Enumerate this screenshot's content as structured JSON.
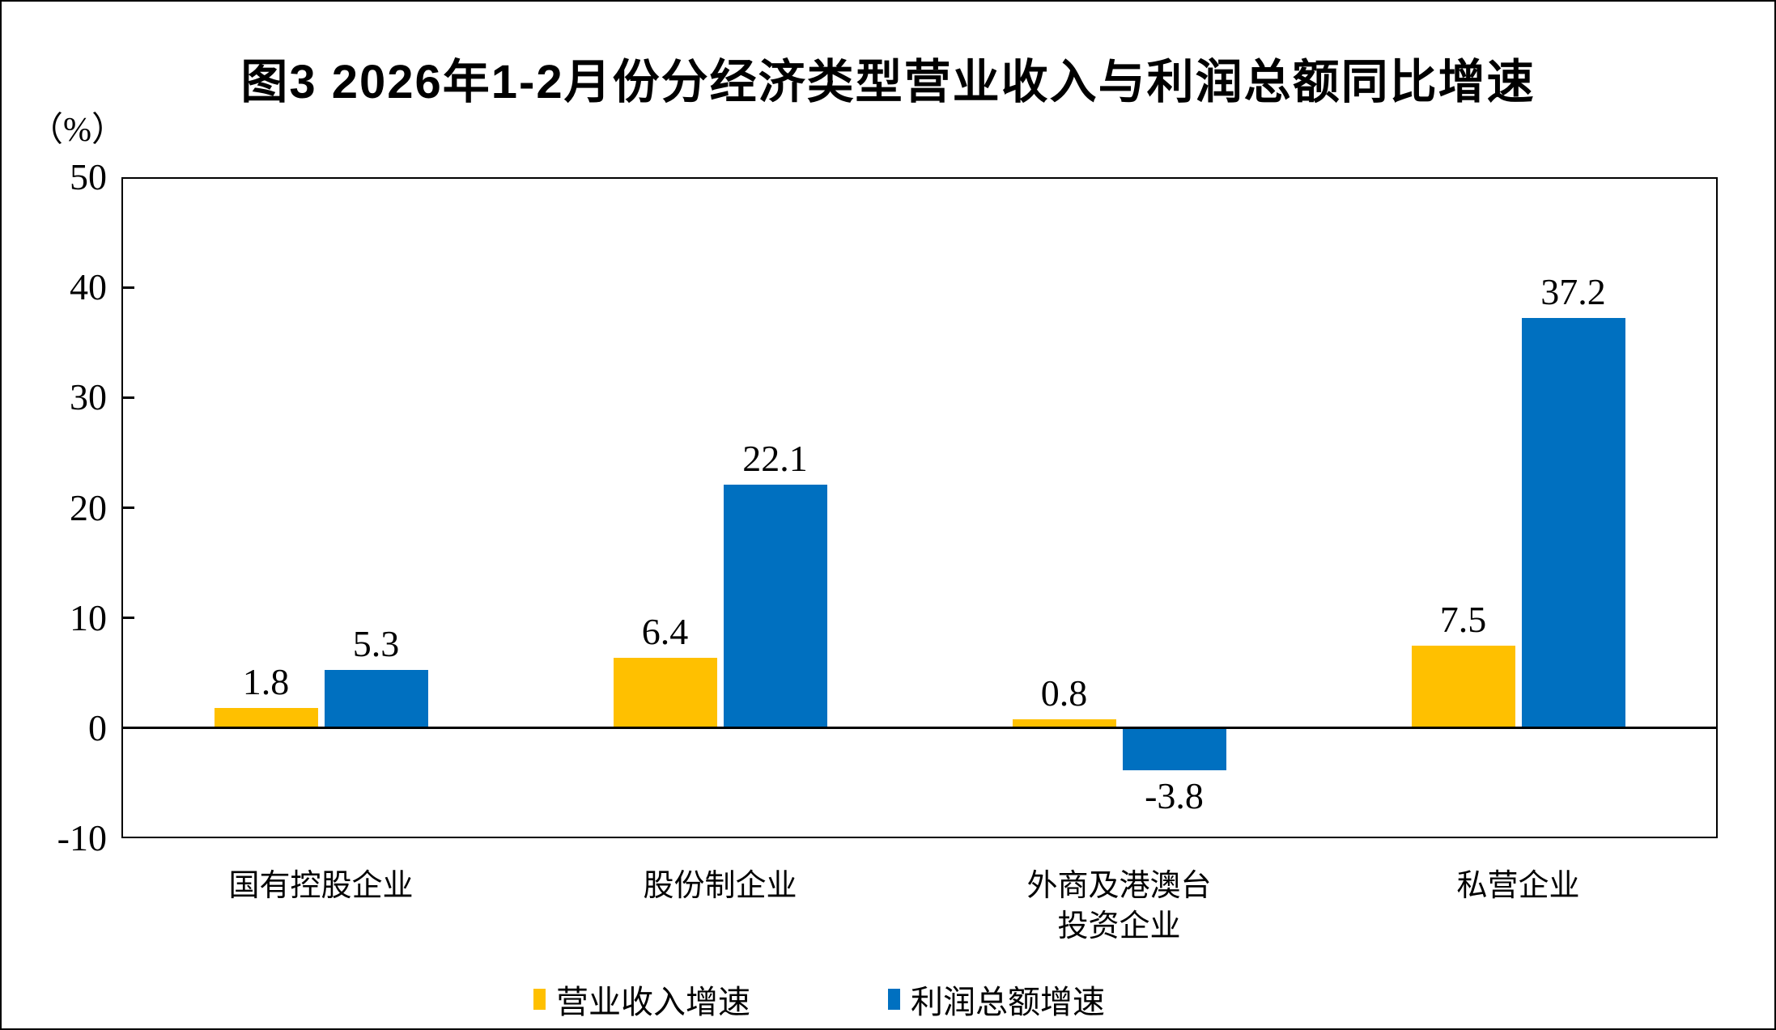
{
  "page": {
    "background_color": "#FFFFFF",
    "border_color": "#000000"
  },
  "chart_data": {
    "type": "bar",
    "title": "图3  2026年1-2月份分经济类型营业收入与利润总额同比增速",
    "ylabel": "（%）",
    "xlabel": "",
    "categories": [
      "国有控股企业",
      "股份制企业",
      "外商及港澳台\n投资企业",
      "私营企业"
    ],
    "series": [
      {
        "name": "营业收入增速",
        "color": "#FFC000",
        "values": [
          1.8,
          6.4,
          0.8,
          7.5
        ]
      },
      {
        "name": "利润总额增速",
        "color": "#0070C0",
        "values": [
          5.3,
          22.1,
          -3.8,
          37.2
        ]
      }
    ],
    "ylim": [
      -10,
      50
    ],
    "yticks": [
      50,
      40,
      30,
      20,
      10,
      0,
      -10
    ],
    "grid": false,
    "data_labels": true,
    "legend_position": "bottom",
    "axis_color": "#000000"
  }
}
